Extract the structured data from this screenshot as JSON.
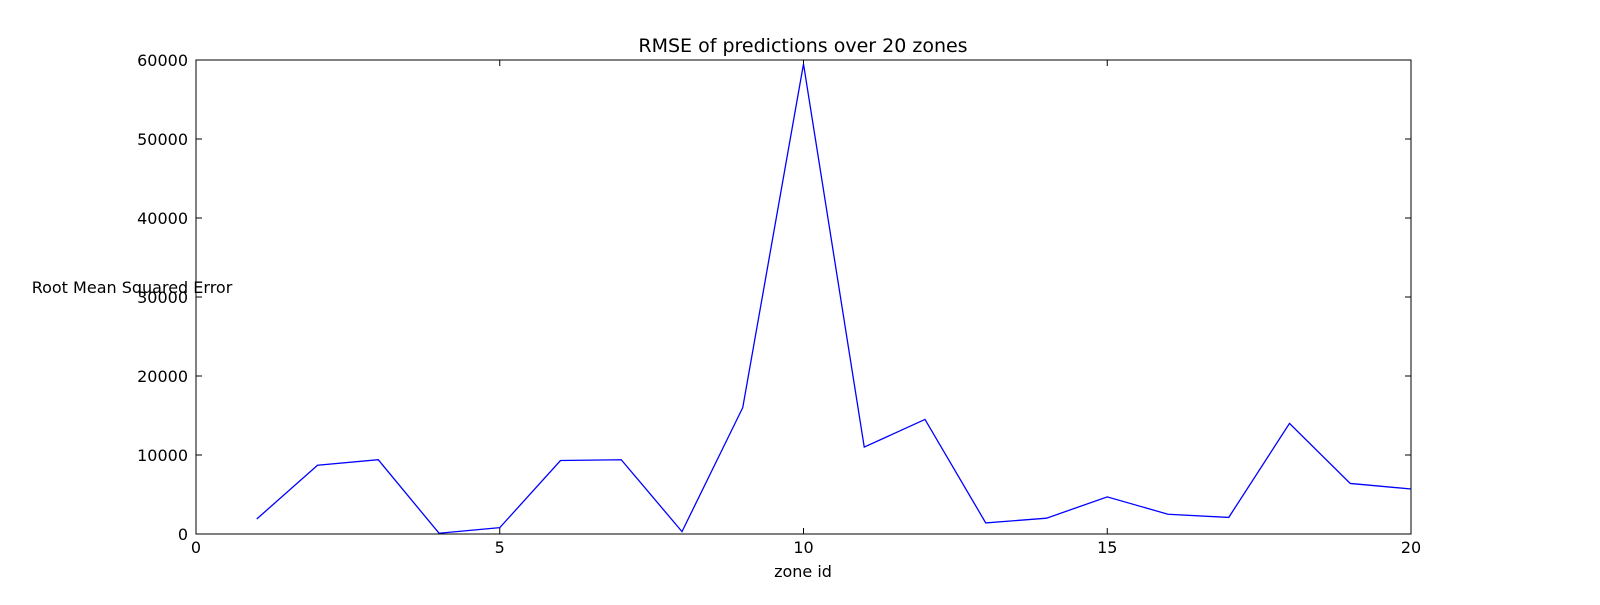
{
  "chart_data": {
    "type": "line",
    "title": "RMSE of predictions over 20 zones",
    "xlabel": "zone id",
    "ylabel": "Root Mean Squared Error",
    "xlim": [
      0,
      20
    ],
    "ylim": [
      0,
      60000
    ],
    "xticks": [
      0,
      5,
      10,
      15,
      20
    ],
    "yticks": [
      0,
      10000,
      20000,
      30000,
      40000,
      50000,
      60000
    ],
    "grid": false,
    "series": [
      {
        "color": "#0000ff",
        "x": [
          1,
          2,
          3,
          4,
          5,
          6,
          7,
          8,
          9,
          10,
          11,
          12,
          13,
          14,
          15,
          16,
          17,
          18,
          19,
          20
        ],
        "values": [
          1900,
          8700,
          9400,
          100,
          800,
          9300,
          9400,
          300,
          16000,
          59500,
          11000,
          14500,
          1400,
          2000,
          4700,
          2500,
          2100,
          14000,
          6400,
          5700
        ]
      }
    ]
  }
}
